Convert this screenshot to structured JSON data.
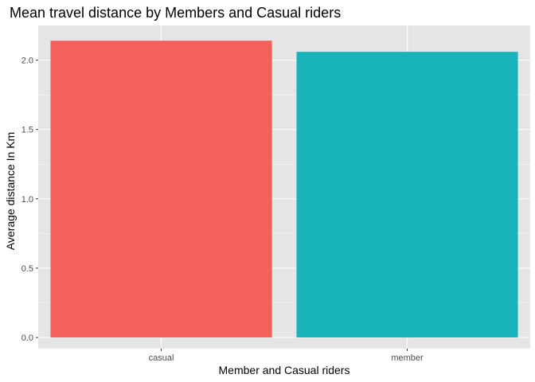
{
  "chart_data": {
    "type": "bar",
    "title": "Mean travel distance by Members and Casual riders",
    "xlabel": "Member and Casual riders",
    "ylabel": "Average distance In Km",
    "categories": [
      "casual",
      "member"
    ],
    "values": [
      2.14,
      2.06
    ],
    "colors": [
      "#F5605C",
      "#19B4B9"
    ],
    "ylim": [
      -0.08,
      2.25
    ],
    "yticks": [
      0.0,
      0.5,
      1.0,
      1.5,
      2.0
    ],
    "ytick_labels": [
      "0.0",
      "0.5",
      "1.0",
      "1.5",
      "2.0"
    ],
    "grid": true,
    "panel_background": "#E5E5E5",
    "grid_color": "#FFFFFF",
    "legend": "none"
  }
}
